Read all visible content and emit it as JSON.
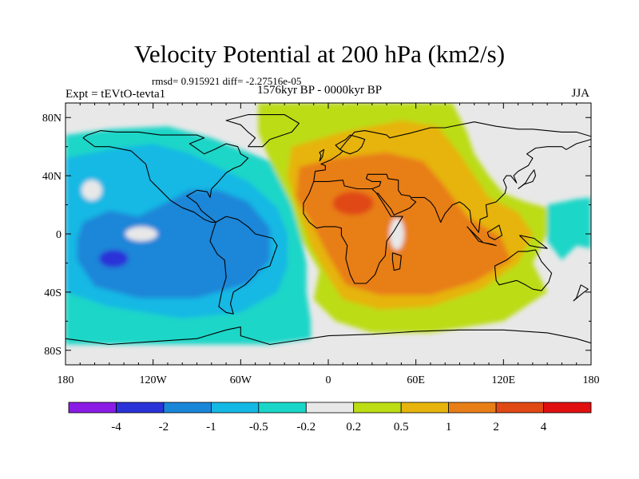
{
  "chart_data": {
    "type": "heatmap",
    "title": "Velocity Potential at 200 hPa (km2/s)",
    "stats_line": "rmsd= 0.915921 diff= -2.27516e-05",
    "experiment_label": "Expt = tEVtO-tevta1",
    "period_label": "1576kyr BP - 0000kyr BP",
    "season_label": "JJA",
    "x_ticks": [
      "180",
      "120W",
      "60W",
      "0",
      "60E",
      "120E",
      "180"
    ],
    "x_tick_values": [
      -180,
      -120,
      -60,
      0,
      60,
      120,
      180
    ],
    "y_ticks": [
      "80N",
      "40N",
      "0",
      "40S",
      "80S"
    ],
    "y_tick_values": [
      80,
      40,
      0,
      -40,
      -80
    ],
    "xlim": [
      -180,
      180
    ],
    "ylim": [
      -90,
      90
    ],
    "colorbar": {
      "levels": [
        "-4",
        "-2",
        "-1",
        "-0.5",
        "-0.2",
        "0.2",
        "0.5",
        "1",
        "2",
        "4"
      ],
      "level_values": [
        -4,
        -2,
        -1,
        -0.5,
        -0.2,
        0.2,
        0.5,
        1,
        2,
        4
      ],
      "colors": [
        "#8a1ce6",
        "#2a33d8",
        "#1a86d8",
        "#14b8e4",
        "#1ad6c8",
        "#e8e8e8",
        "#bcdc14",
        "#e6b40c",
        "#e87e18",
        "#e04814",
        "#e01010"
      ]
    },
    "features": [
      {
        "name": "negative-center-pacific",
        "lon": -145,
        "lat": -18,
        "value": -2.5
      },
      {
        "name": "negative-lobe-south-america",
        "lon": -70,
        "lat": -5,
        "value": -1.5
      },
      {
        "name": "positive-center-sahara",
        "lon": 15,
        "lat": 20,
        "value": 4.2
      },
      {
        "name": "positive-lobe-indian-ocean",
        "lon": 60,
        "lat": -20,
        "value": 2.5
      },
      {
        "name": "weak-center-east-africa",
        "lon": 40,
        "lat": 5,
        "value": 0.5
      }
    ]
  }
}
